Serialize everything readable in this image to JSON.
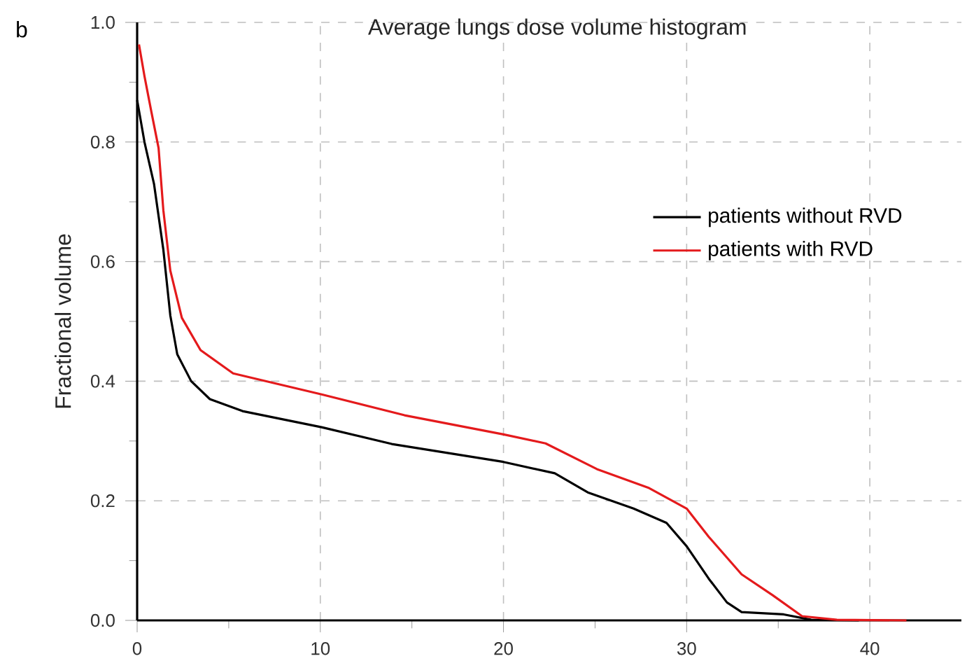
{
  "chart_data": {
    "type": "line",
    "title": "Average lungs dose volume histogram",
    "ylabel": "Fractional volume",
    "annotations": [
      "b"
    ],
    "xlim": [
      0,
      45
    ],
    "xticks": [
      0,
      10,
      20,
      30,
      40
    ],
    "ylim": [
      0,
      1.0
    ],
    "yticks": [
      {
        "value": 0,
        "label": "0.0"
      },
      {
        "value": 0.2,
        "label": "0.2"
      },
      {
        "value": 0.4,
        "label": "0.4"
      },
      {
        "value": 0.6,
        "label": "0.6"
      },
      {
        "value": 0.8,
        "label": "0.8"
      },
      {
        "value": 1.0,
        "label": "1.0"
      }
    ],
    "grid": true,
    "legend": "top right",
    "marker": "none",
    "line_style": "solid",
    "series": [
      {
        "name": "patients without RVD",
        "color": "#000000",
        "x": [
          0,
          0.4,
          0.92,
          1.43,
          1.81,
          2.19,
          2.95,
          3.97,
          5.75,
          10.07,
          13.9,
          20,
          22.8,
          24.6,
          27.1,
          28.9,
          30,
          31.2,
          32.2,
          33,
          35.3,
          36.8,
          39.4
        ],
        "values": [
          0.87,
          0.8,
          0.73,
          0.62,
          0.51,
          0.445,
          0.4,
          0.37,
          0.35,
          0.323,
          0.295,
          0.265,
          0.246,
          0.214,
          0.187,
          0.163,
          0.124,
          0.07,
          0.03,
          0.014,
          0.01,
          0.001,
          0
        ]
      },
      {
        "name": "patients with RVD",
        "color": "#e41a1c",
        "x": [
          0.1,
          0.4,
          0.78,
          1.17,
          1.43,
          1.81,
          2.44,
          3.46,
          5.24,
          10.07,
          14.6,
          20,
          22.3,
          25.1,
          27.9,
          30,
          31.2,
          33,
          34.7,
          36.3,
          38.2,
          42
        ],
        "values": [
          0.963,
          0.91,
          0.85,
          0.79,
          0.686,
          0.585,
          0.506,
          0.452,
          0.413,
          0.378,
          0.343,
          0.311,
          0.296,
          0.253,
          0.222,
          0.187,
          0.14,
          0.077,
          0.042,
          0.007,
          0.001,
          0
        ]
      }
    ]
  }
}
